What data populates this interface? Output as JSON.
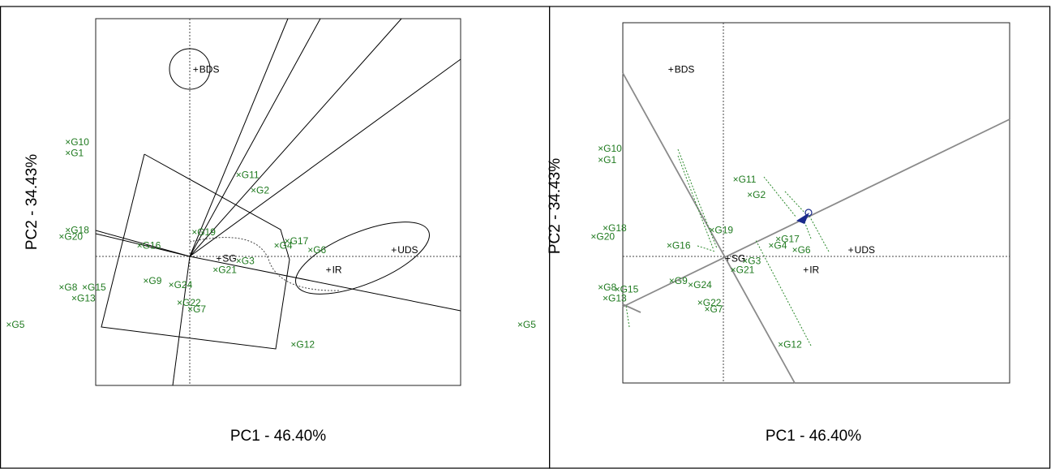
{
  "chart_data": [
    {
      "type": "scatter",
      "xlabel": "PC1 - 46.40%",
      "ylabel": "PC2 - 34.43%",
      "xlim": [
        -1,
        1
      ],
      "ylim": [
        -1,
        1
      ],
      "genotypes": [
        {
          "label": "G10",
          "x": -0.58,
          "y": 0.52
        },
        {
          "label": "G1",
          "x": -0.58,
          "y": 0.47
        },
        {
          "label": "G11",
          "x": 0.23,
          "y": 0.37
        },
        {
          "label": "G2",
          "x": 0.3,
          "y": 0.3
        },
        {
          "label": "G18",
          "x": -0.58,
          "y": 0.12
        },
        {
          "label": "G20",
          "x": -0.61,
          "y": 0.09
        },
        {
          "label": "G19",
          "x": 0.02,
          "y": 0.11
        },
        {
          "label": "G16",
          "x": -0.24,
          "y": 0.05
        },
        {
          "label": "G17",
          "x": 0.46,
          "y": 0.07
        },
        {
          "label": "G4",
          "x": 0.41,
          "y": 0.05
        },
        {
          "label": "G6",
          "x": 0.57,
          "y": 0.03
        },
        {
          "label": "G3",
          "x": 0.23,
          "y": -0.02
        },
        {
          "label": "G21",
          "x": 0.12,
          "y": -0.06
        },
        {
          "label": "G8",
          "x": -0.61,
          "y": -0.14
        },
        {
          "label": "G15",
          "x": -0.5,
          "y": -0.14
        },
        {
          "label": "G9",
          "x": -0.21,
          "y": -0.11
        },
        {
          "label": "G24",
          "x": -0.09,
          "y": -0.13
        },
        {
          "label": "G13",
          "x": -0.55,
          "y": -0.19
        },
        {
          "label": "G22",
          "x": -0.05,
          "y": -0.21
        },
        {
          "label": "G7",
          "x": 0.0,
          "y": -0.24
        },
        {
          "label": "G5",
          "x": -0.86,
          "y": -0.31
        },
        {
          "label": "G12",
          "x": 0.49,
          "y": -0.4
        }
      ],
      "environments": [
        {
          "label": "BDS",
          "x": 0.03,
          "y": 0.85
        },
        {
          "label": "UDS",
          "x": 0.97,
          "y": 0.03
        },
        {
          "label": "SG",
          "x": 0.14,
          "y": -0.01
        },
        {
          "label": "IR",
          "x": 0.66,
          "y": -0.06
        }
      ]
    },
    {
      "type": "scatter",
      "xlabel": "PC1 - 46.40%",
      "ylabel": "PC2 - 34.43%",
      "xlim": [
        -1,
        1
      ],
      "ylim": [
        -1,
        1
      ],
      "genotypes": [
        {
          "label": "G10",
          "x": -0.52,
          "y": 0.49
        },
        {
          "label": "G1",
          "x": -0.52,
          "y": 0.44
        },
        {
          "label": "G11",
          "x": 0.05,
          "y": 0.35
        },
        {
          "label": "G2",
          "x": 0.11,
          "y": 0.28
        },
        {
          "label": "G18",
          "x": -0.5,
          "y": 0.13
        },
        {
          "label": "G20",
          "x": -0.55,
          "y": 0.09
        },
        {
          "label": "G19",
          "x": -0.05,
          "y": 0.12
        },
        {
          "label": "G16",
          "x": -0.23,
          "y": 0.05
        },
        {
          "label": "G17",
          "x": 0.23,
          "y": 0.08
        },
        {
          "label": "G4",
          "x": 0.2,
          "y": 0.05
        },
        {
          "label": "G6",
          "x": 0.3,
          "y": 0.03
        },
        {
          "label": "G3",
          "x": 0.09,
          "y": -0.02
        },
        {
          "label": "G21",
          "x": 0.04,
          "y": -0.06
        },
        {
          "label": "G8",
          "x": -0.52,
          "y": -0.14
        },
        {
          "label": "G15",
          "x": -0.45,
          "y": -0.15
        },
        {
          "label": "G9",
          "x": -0.22,
          "y": -0.11
        },
        {
          "label": "G24",
          "x": -0.14,
          "y": -0.13
        },
        {
          "label": "G13",
          "x": -0.5,
          "y": -0.19
        },
        {
          "label": "G22",
          "x": -0.1,
          "y": -0.21
        },
        {
          "label": "G7",
          "x": -0.07,
          "y": -0.24
        },
        {
          "label": "G5",
          "x": -0.86,
          "y": -0.31
        },
        {
          "label": "G12",
          "x": 0.24,
          "y": -0.4
        }
      ],
      "environments": [
        {
          "label": "BDS",
          "x": -0.22,
          "y": 0.85
        },
        {
          "label": "UDS",
          "x": 0.54,
          "y": 0.03
        },
        {
          "label": "SG",
          "x": 0.02,
          "y": -0.01
        },
        {
          "label": "IR",
          "x": 0.35,
          "y": -0.06
        }
      ]
    }
  ]
}
